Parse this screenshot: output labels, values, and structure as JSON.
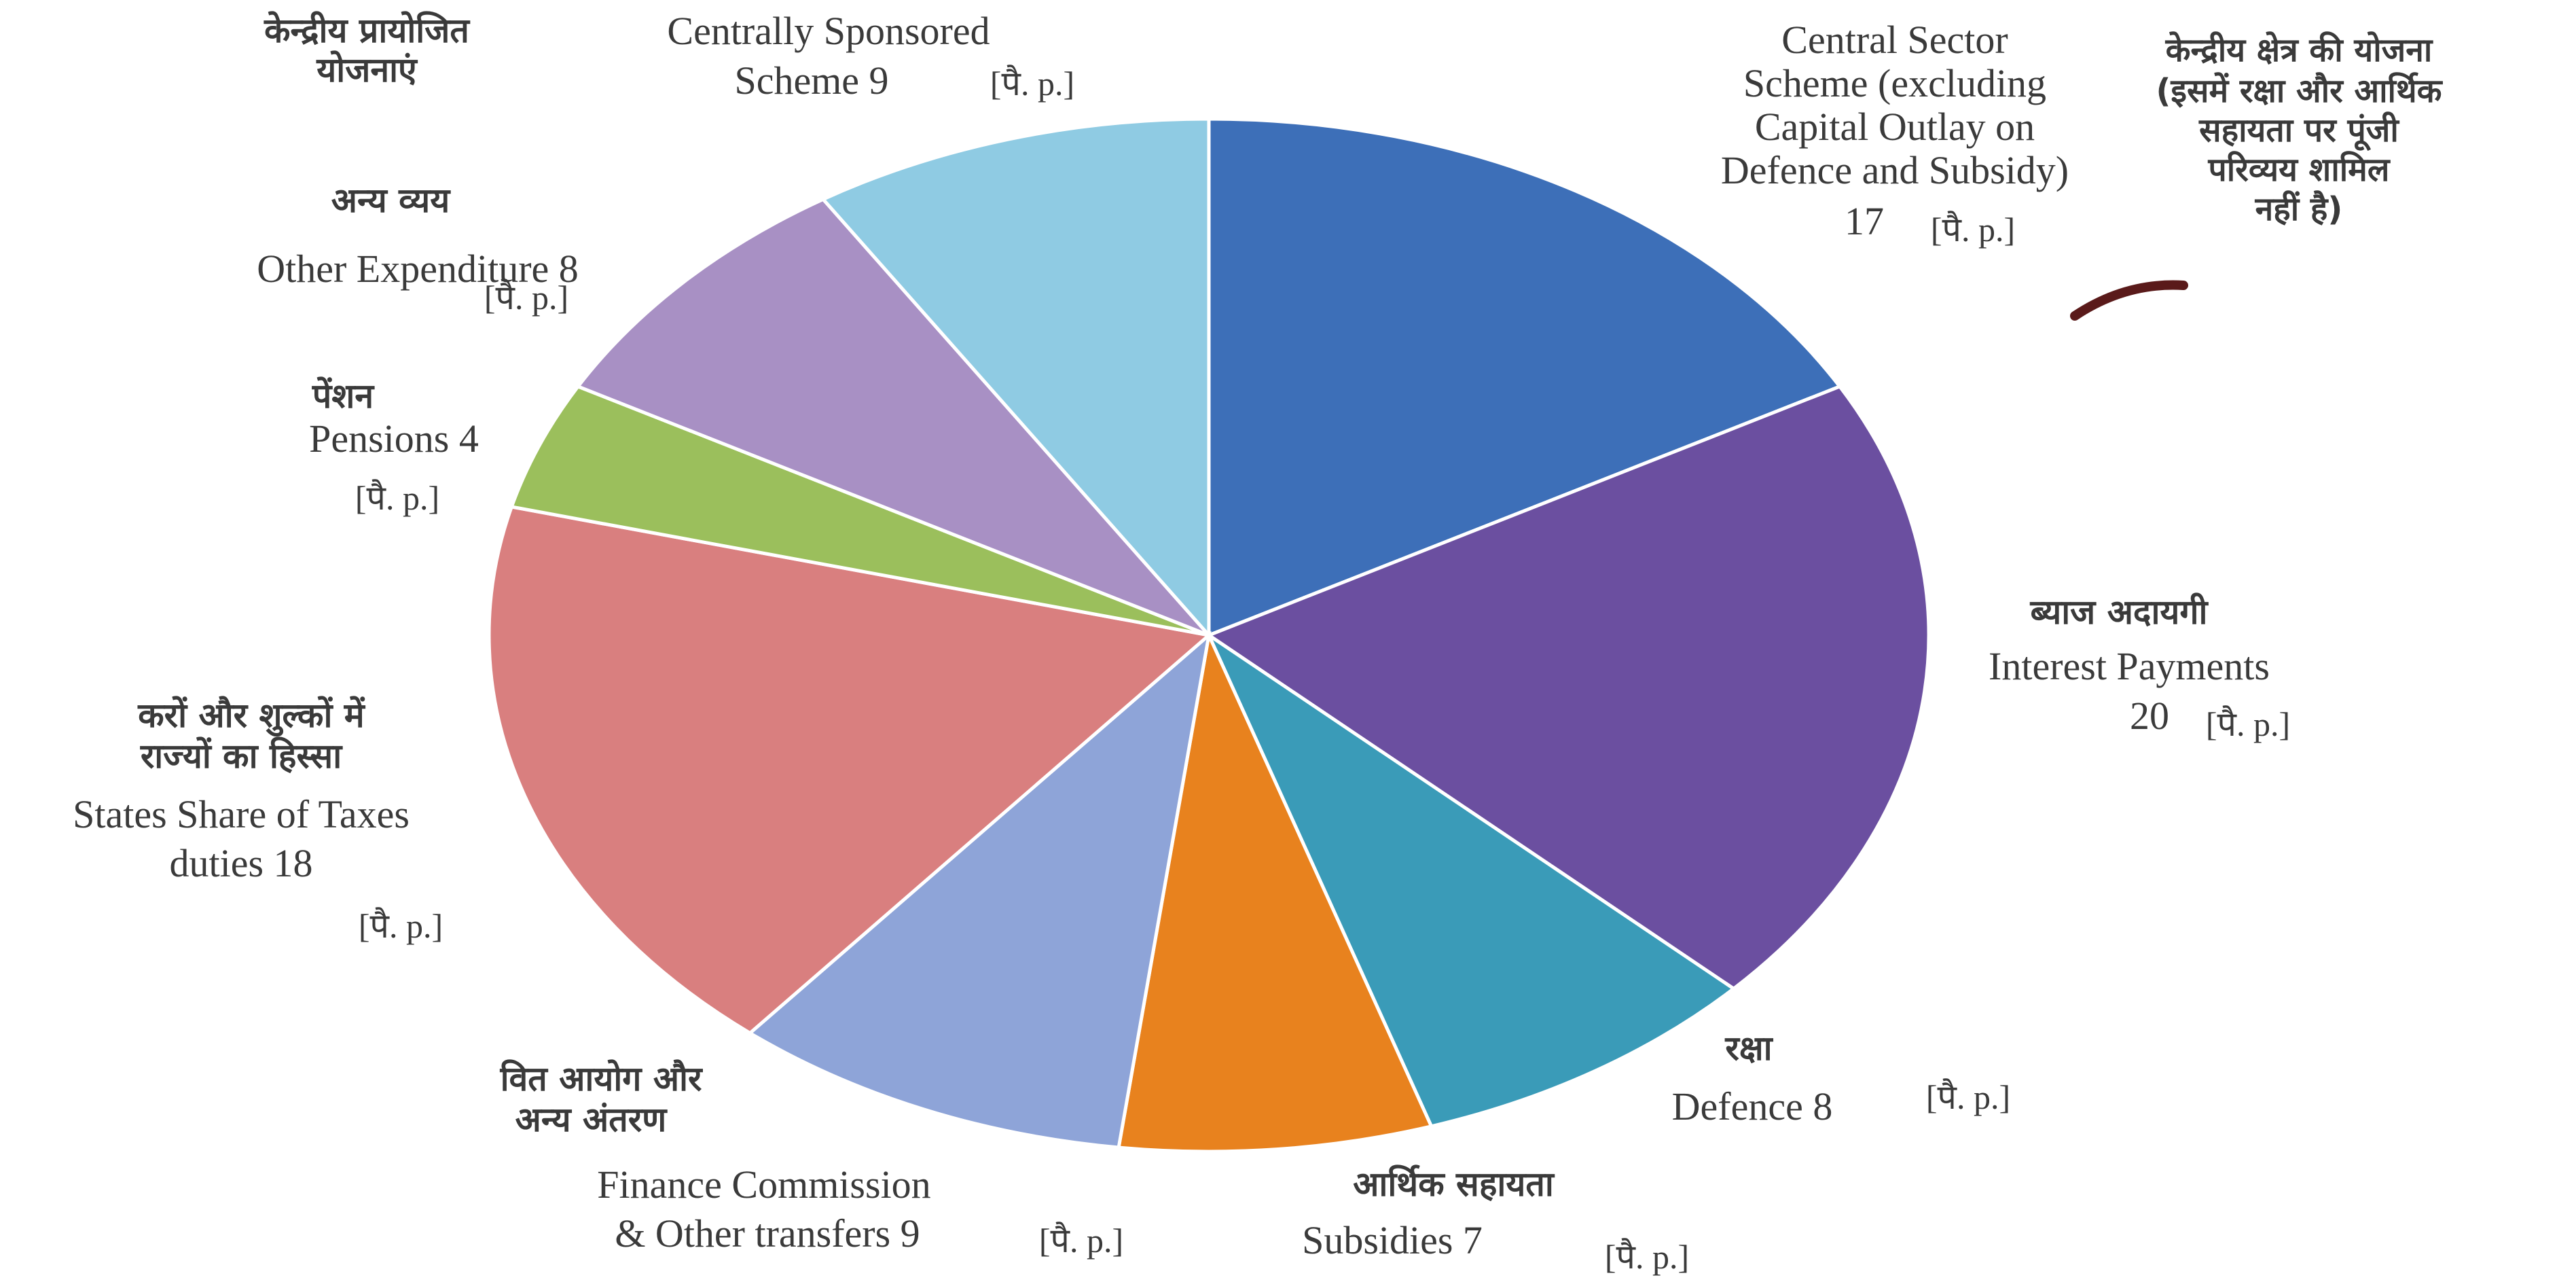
{
  "chart_data": {
    "type": "pie",
    "title": "",
    "unit_tag": "[पै. p.]",
    "slices": [
      {
        "name_hi": "",
        "name_en": [
          "Central Sector",
          "Scheme (excluding",
          "Capital Outlay on",
          "Defence and Subsidy)"
        ],
        "value": 17,
        "color": "#3d6fb8"
      },
      {
        "name_hi": [
          "ब्याज अदायगी"
        ],
        "name_en": [
          "Interest Payments"
        ],
        "value": 20,
        "color": "#6b4fa0"
      },
      {
        "name_hi": [
          "रक्षा"
        ],
        "name_en": [
          "Defence 8"
        ],
        "value": 8,
        "color": "#3a9bb8"
      },
      {
        "name_hi": [
          "आर्थिक सहायता"
        ],
        "name_en": [
          "Subsidies 7"
        ],
        "value": 7,
        "color": "#e8821e"
      },
      {
        "name_hi": [
          "वित आयोग और",
          "अन्य अंतरण"
        ],
        "name_en": [
          "Finance Commission",
          "& Other transfers 9"
        ],
        "value": 9,
        "color": "#8ea4d8"
      },
      {
        "name_hi": [
          "करों और शुल्कों में",
          "राज्यों का हिस्सा"
        ],
        "name_en": [
          "States Share of Taxes",
          "duties 18"
        ],
        "value": 18,
        "color": "#d97f7f"
      },
      {
        "name_hi": [
          "पेंशन"
        ],
        "name_en": [
          "Pensions 4"
        ],
        "value": 4,
        "color": "#9bbf5c"
      },
      {
        "name_hi": [
          "अन्य व्यय"
        ],
        "name_en": [
          "Other Expenditure 8"
        ],
        "value": 8,
        "color": "#a890c4"
      },
      {
        "name_hi": [
          "केन्द्रीय प्रायोजित",
          "योजनाएं"
        ],
        "name_en": [
          "Centrally Sponsored",
          "Scheme 9"
        ],
        "value": 9,
        "color": "#8fcbe3"
      }
    ],
    "extra_labels": {
      "central_sector_value": "17",
      "central_sector_hi": [
        "केन्द्रीय क्षेत्र की योजना",
        "(इसमें रक्षा और आर्थिक",
        "सहायता पर पूंजी",
        "परिव्यय शामिल",
        "नहीं है)"
      ],
      "interest_value": "20"
    }
  }
}
